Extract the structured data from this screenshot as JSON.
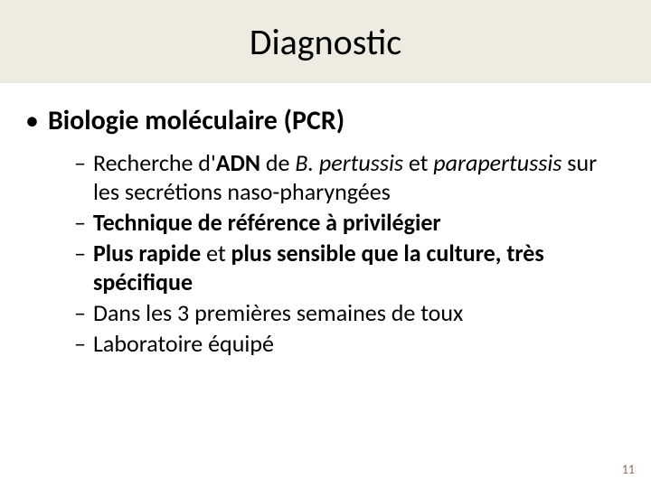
{
  "title": "Diagnostic",
  "title_bar_bg": "#eeece1",
  "title_fontsize": 40,
  "level1": {
    "bullet": "•",
    "text": "Biologie moléculaire (PCR)"
  },
  "level2_dash": "–",
  "items": [
    {
      "pre": "Recherche d'",
      "bold1": "ADN",
      "mid1": " de ",
      "italic1": "B. pertussis",
      "mid2": " et ",
      "italic2": "parapertussis",
      "post": " sur les secrétions naso-pharyngées"
    },
    {
      "bold_only": "Technique de référence à privilégier"
    },
    {
      "bold1": "Plus rapide",
      "mid1": " et ",
      "bold2": "plus sensible que la culture, très spécifique"
    },
    {
      "plain": "Dans les 3 premières semaines de toux"
    },
    {
      "plain": "Laboratoire équipé"
    }
  ],
  "page_number": "11",
  "page_number_color": "#8a6b5a"
}
